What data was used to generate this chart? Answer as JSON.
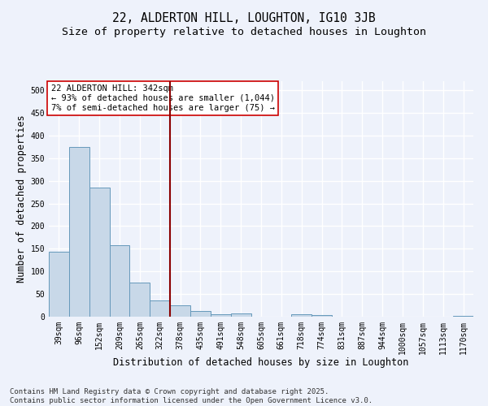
{
  "title_line1": "22, ALDERTON HILL, LOUGHTON, IG10 3JB",
  "title_line2": "Size of property relative to detached houses in Loughton",
  "xlabel": "Distribution of detached houses by size in Loughton",
  "ylabel": "Number of detached properties",
  "categories": [
    "39sqm",
    "96sqm",
    "152sqm",
    "209sqm",
    "265sqm",
    "322sqm",
    "378sqm",
    "435sqm",
    "491sqm",
    "548sqm",
    "605sqm",
    "661sqm",
    "718sqm",
    "774sqm",
    "831sqm",
    "887sqm",
    "944sqm",
    "1000sqm",
    "1057sqm",
    "1113sqm",
    "1170sqm"
  ],
  "values": [
    143,
    375,
    285,
    157,
    75,
    35,
    26,
    12,
    6,
    7,
    0,
    0,
    5,
    4,
    0,
    0,
    0,
    0,
    0,
    0,
    2
  ],
  "bar_color": "#c8d8e8",
  "bar_edge_color": "#6699bb",
  "vline_x": 5.5,
  "vline_color": "#8b0000",
  "annotation_text": "22 ALDERTON HILL: 342sqm\n← 93% of detached houses are smaller (1,044)\n7% of semi-detached houses are larger (75) →",
  "annotation_box_color": "#ffffff",
  "annotation_box_edge_color": "#cc0000",
  "ylim": [
    0,
    520
  ],
  "yticks": [
    0,
    50,
    100,
    150,
    200,
    250,
    300,
    350,
    400,
    450,
    500
  ],
  "background_color": "#eef2fb",
  "grid_color": "#ffffff",
  "footer_line1": "Contains HM Land Registry data © Crown copyright and database right 2025.",
  "footer_line2": "Contains public sector information licensed under the Open Government Licence v3.0.",
  "title_fontsize": 10.5,
  "subtitle_fontsize": 9.5,
  "axis_label_fontsize": 8.5,
  "tick_fontsize": 7,
  "annotation_fontsize": 7.5,
  "footer_fontsize": 6.5
}
